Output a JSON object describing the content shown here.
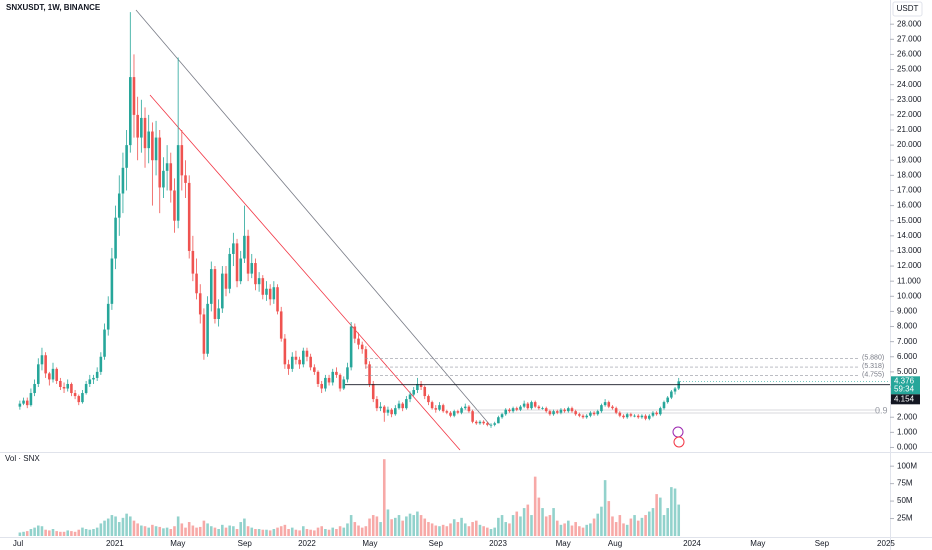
{
  "chart_data": {
    "type": "candlestick",
    "title": "SNXUSDT, 1W, BINANCE",
    "currency": "USDT",
    "up_color": "#26a69a",
    "down_color": "#ef5350",
    "xlim": [
      -5.4,
      236.4
    ],
    "xticks": [
      {
        "value": -0.5,
        "label": "Jul"
      },
      {
        "value": 25.8,
        "label": "2021"
      },
      {
        "value": 42.9,
        "label": "May"
      },
      {
        "value": 61.1,
        "label": "Sep"
      },
      {
        "value": 78,
        "label": "2022"
      },
      {
        "value": 95.1,
        "label": "May"
      },
      {
        "value": 113,
        "label": "Sep"
      },
      {
        "value": 129.9,
        "label": "2023"
      },
      {
        "value": 147.6,
        "label": "May"
      },
      {
        "value": 161.7,
        "label": "Aug"
      },
      {
        "value": 182.6,
        "label": "2024"
      },
      {
        "value": 200.5,
        "label": "May"
      },
      {
        "value": 217.9,
        "label": "Sep"
      },
      {
        "value": 235.3,
        "label": "2025"
      }
    ],
    "ylim": [
      -0.3,
      29.6
    ],
    "yticks": [
      {
        "value": 0,
        "label": "0.000"
      },
      {
        "value": 1,
        "label": "1.000"
      },
      {
        "value": 2,
        "label": "2.000"
      },
      {
        "value": 3,
        "label": "3.000"
      },
      {
        "value": 4,
        "label": "4.000"
      },
      {
        "value": 5,
        "label": "5.000"
      },
      {
        "value": 6,
        "label": "6.000"
      },
      {
        "value": 7,
        "label": "7.000"
      },
      {
        "value": 8,
        "label": "8.000"
      },
      {
        "value": 9,
        "label": "9.000"
      },
      {
        "value": 10,
        "label": "10.000"
      },
      {
        "value": 11,
        "label": "11.000"
      },
      {
        "value": 12,
        "label": "12.000"
      },
      {
        "value": 13,
        "label": "13.000"
      },
      {
        "value": 14,
        "label": "14.000"
      },
      {
        "value": 15,
        "label": "15.000"
      },
      {
        "value": 16,
        "label": "16.000"
      },
      {
        "value": 17,
        "label": "17.000"
      },
      {
        "value": 18,
        "label": "18.000"
      },
      {
        "value": 19,
        "label": "19.000"
      },
      {
        "value": 20,
        "label": "20.000"
      },
      {
        "value": 21,
        "label": "21.000"
      },
      {
        "value": 22,
        "label": "22.000"
      },
      {
        "value": 23,
        "label": "23.000"
      },
      {
        "value": 24,
        "label": "24.000"
      },
      {
        "value": 25,
        "label": "25.000"
      },
      {
        "value": 26,
        "label": "26.000"
      },
      {
        "value": 27,
        "label": "27.000"
      },
      {
        "value": 28,
        "label": "28.000"
      }
    ],
    "levels": [
      {
        "value": 5.88,
        "label": "(5.880)"
      },
      {
        "value": 5.318,
        "label": "(5.318)"
      },
      {
        "value": 4.755,
        "label": "(4.755)"
      }
    ],
    "last_price": 4.376,
    "countdown": "59:34",
    "prev_level": {
      "value": 4.154,
      "label": "4.154"
    },
    "annotation": "0.9",
    "ohlc": [
      [
        2.7,
        3.1,
        2.5,
        2.9
      ],
      [
        2.9,
        3.3,
        2.8,
        3.1
      ],
      [
        3.1,
        3.3,
        2.6,
        2.8
      ],
      [
        2.8,
        3.9,
        2.7,
        3.6
      ],
      [
        3.6,
        4.5,
        3.4,
        4.2
      ],
      [
        4.2,
        5.9,
        4.0,
        5.5
      ],
      [
        5.5,
        6.6,
        5.1,
        6.1
      ],
      [
        6.1,
        6.3,
        4.6,
        4.9
      ],
      [
        4.9,
        5.0,
        4.1,
        4.5
      ],
      [
        4.5,
        5.6,
        4.3,
        5.2
      ],
      [
        5.2,
        5.3,
        4.2,
        4.4
      ],
      [
        4.4,
        4.6,
        3.8,
        4.0
      ],
      [
        4.0,
        4.3,
        3.6,
        3.9
      ],
      [
        3.9,
        4.5,
        3.7,
        4.2
      ],
      [
        4.2,
        4.3,
        3.4,
        3.6
      ],
      [
        3.6,
        3.8,
        3.2,
        3.4
      ],
      [
        3.4,
        3.5,
        2.8,
        3.0
      ],
      [
        3.0,
        3.8,
        2.9,
        3.6
      ],
      [
        3.6,
        4.4,
        3.5,
        4.2
      ],
      [
        4.2,
        4.8,
        4.0,
        4.5
      ],
      [
        4.5,
        4.8,
        4.2,
        4.6
      ],
      [
        4.6,
        5.3,
        4.4,
        5.0
      ],
      [
        5.0,
        6.3,
        4.8,
        6.0
      ],
      [
        6.0,
        8.2,
        5.8,
        7.8
      ],
      [
        7.8,
        10.0,
        7.4,
        9.5
      ],
      [
        9.5,
        13.2,
        9.1,
        12.5
      ],
      [
        12.5,
        16.0,
        11.8,
        15.2
      ],
      [
        15.2,
        18.0,
        14.0,
        16.8
      ],
      [
        16.8,
        19.5,
        15.5,
        18.5
      ],
      [
        18.5,
        21.0,
        17.0,
        20.0
      ],
      [
        20.0,
        28.8,
        19.5,
        24.5
      ],
      [
        24.5,
        26.0,
        20.5,
        22.0
      ],
      [
        22.0,
        23.2,
        19.0,
        20.5
      ],
      [
        20.5,
        23.0,
        19.5,
        21.8
      ],
      [
        21.8,
        22.5,
        18.5,
        19.8
      ],
      [
        19.8,
        22.0,
        18.8,
        20.9
      ],
      [
        20.9,
        21.5,
        16.0,
        19.0
      ],
      [
        19.0,
        21.6,
        18.0,
        20.5
      ],
      [
        20.5,
        21.0,
        15.5,
        17.2
      ],
      [
        17.2,
        19.2,
        16.5,
        18.3
      ],
      [
        18.3,
        20.0,
        17.0,
        18.8
      ],
      [
        18.8,
        19.5,
        16.2,
        17.0
      ],
      [
        17.0,
        17.8,
        14.2,
        15.0
      ],
      [
        15.0,
        25.8,
        14.5,
        20.0
      ],
      [
        20.0,
        21.0,
        17.0,
        18.0
      ],
      [
        18.0,
        19.0,
        16.5,
        17.5
      ],
      [
        17.5,
        18.0,
        12.5,
        13.0
      ],
      [
        13.0,
        14.0,
        11.0,
        11.5
      ],
      [
        11.5,
        12.5,
        9.8,
        10.2
      ],
      [
        10.2,
        10.8,
        8.2,
        8.8
      ],
      [
        8.8,
        9.2,
        5.8,
        6.2
      ],
      [
        6.2,
        10.0,
        6.0,
        9.5
      ],
      [
        9.5,
        12.3,
        9.0,
        11.8
      ],
      [
        11.8,
        12.0,
        8.2,
        8.5
      ],
      [
        8.5,
        9.8,
        8.0,
        9.2
      ],
      [
        9.2,
        12.0,
        8.9,
        11.5
      ],
      [
        11.5,
        12.0,
        10.0,
        10.5
      ],
      [
        10.5,
        13.2,
        10.2,
        12.8
      ],
      [
        12.8,
        14.2,
        12.0,
        13.5
      ],
      [
        13.5,
        13.8,
        10.6,
        11.0
      ],
      [
        11.0,
        13.0,
        10.8,
        12.5
      ],
      [
        12.5,
        16.0,
        12.2,
        14.0
      ],
      [
        14.0,
        14.4,
        11.0,
        11.5
      ],
      [
        11.5,
        12.8,
        11.2,
        12.2
      ],
      [
        12.2,
        12.5,
        10.4,
        10.8
      ],
      [
        10.8,
        11.6,
        10.3,
        11.2
      ],
      [
        11.2,
        11.4,
        9.8,
        10.1
      ],
      [
        10.1,
        11.0,
        9.7,
        10.5
      ],
      [
        10.5,
        10.8,
        9.4,
        9.8
      ],
      [
        9.8,
        11.0,
        9.5,
        10.6
      ],
      [
        10.6,
        10.8,
        8.8,
        9.0
      ],
      [
        9.0,
        9.3,
        7.0,
        7.2
      ],
      [
        7.2,
        7.5,
        5.2,
        5.5
      ],
      [
        5.5,
        5.8,
        4.8,
        5.2
      ],
      [
        5.2,
        6.3,
        5.0,
        6.0
      ],
      [
        6.0,
        6.4,
        5.5,
        5.8
      ],
      [
        5.8,
        6.0,
        5.2,
        5.5
      ],
      [
        5.5,
        6.6,
        5.3,
        6.4
      ],
      [
        6.4,
        6.6,
        5.7,
        6.0
      ],
      [
        6.0,
        6.2,
        5.1,
        5.3
      ],
      [
        5.3,
        5.5,
        4.8,
        5.0
      ],
      [
        5.0,
        5.1,
        4.0,
        4.2
      ],
      [
        4.2,
        4.4,
        3.6,
        3.9
      ],
      [
        3.9,
        4.8,
        3.7,
        4.6
      ],
      [
        4.6,
        4.8,
        4.1,
        4.3
      ],
      [
        4.3,
        5.2,
        4.1,
        5.0
      ],
      [
        5.0,
        5.3,
        4.6,
        4.8
      ],
      [
        4.8,
        4.9,
        3.7,
        3.9
      ],
      [
        3.9,
        4.7,
        3.8,
        4.5
      ],
      [
        4.5,
        5.6,
        4.3,
        5.3
      ],
      [
        5.3,
        8.3,
        5.1,
        8.0
      ],
      [
        8.0,
        8.2,
        6.9,
        7.2
      ],
      [
        7.2,
        7.6,
        6.5,
        6.8
      ],
      [
        6.8,
        7.0,
        6.2,
        6.5
      ],
      [
        6.5,
        6.7,
        5.2,
        5.5
      ],
      [
        5.5,
        5.7,
        4.0,
        4.2
      ],
      [
        4.2,
        4.4,
        3.0,
        3.2
      ],
      [
        3.2,
        3.4,
        2.4,
        2.6
      ],
      [
        2.6,
        3.0,
        2.4,
        2.7
      ],
      [
        2.7,
        2.8,
        1.7,
        2.3
      ],
      [
        2.3,
        2.7,
        2.1,
        2.5
      ],
      [
        2.5,
        2.6,
        2.0,
        2.2
      ],
      [
        2.2,
        2.8,
        2.1,
        2.6
      ],
      [
        2.6,
        3.1,
        2.5,
        2.9
      ],
      [
        2.9,
        3.0,
        2.4,
        2.6
      ],
      [
        2.6,
        3.4,
        2.5,
        3.2
      ],
      [
        3.2,
        3.7,
        3.0,
        3.5
      ],
      [
        3.5,
        4.0,
        3.4,
        3.8
      ],
      [
        3.8,
        4.6,
        3.6,
        4.2
      ],
      [
        4.2,
        4.4,
        3.8,
        4.0
      ],
      [
        4.0,
        4.1,
        3.2,
        3.4
      ],
      [
        3.4,
        3.5,
        2.8,
        3.0
      ],
      [
        3.0,
        3.1,
        2.5,
        2.6
      ],
      [
        2.6,
        2.8,
        2.3,
        2.5
      ],
      [
        2.5,
        3.0,
        2.4,
        2.8
      ],
      [
        2.8,
        2.9,
        2.3,
        2.4
      ],
      [
        2.4,
        2.5,
        2.2,
        2.3
      ],
      [
        2.3,
        2.4,
        2.0,
        2.1
      ],
      [
        2.1,
        2.5,
        2.0,
        2.4
      ],
      [
        2.4,
        2.5,
        2.2,
        2.3
      ],
      [
        2.3,
        2.7,
        2.2,
        2.6
      ],
      [
        2.6,
        2.9,
        2.5,
        2.7
      ],
      [
        2.7,
        2.8,
        2.3,
        2.4
      ],
      [
        2.4,
        2.5,
        1.6,
        1.7
      ],
      [
        1.7,
        1.8,
        1.5,
        1.6
      ],
      [
        1.6,
        1.8,
        1.5,
        1.7
      ],
      [
        1.7,
        1.8,
        1.5,
        1.6
      ],
      [
        1.6,
        1.7,
        1.4,
        1.5
      ],
      [
        1.5,
        1.6,
        1.3,
        1.5
      ],
      [
        1.5,
        1.7,
        1.4,
        1.6
      ],
      [
        1.6,
        2.1,
        1.6,
        2.0
      ],
      [
        2.0,
        2.3,
        1.9,
        2.2
      ],
      [
        2.2,
        2.6,
        2.1,
        2.5
      ],
      [
        2.5,
        2.6,
        2.3,
        2.4
      ],
      [
        2.4,
        2.7,
        2.3,
        2.6
      ],
      [
        2.6,
        2.7,
        2.4,
        2.5
      ],
      [
        2.5,
        2.8,
        2.4,
        2.7
      ],
      [
        2.7,
        3.1,
        2.6,
        2.9
      ],
      [
        2.9,
        3.0,
        2.5,
        2.6
      ],
      [
        2.6,
        3.1,
        2.5,
        3.0
      ],
      [
        3.0,
        3.1,
        2.6,
        2.7
      ],
      [
        2.7,
        2.8,
        2.5,
        2.6
      ],
      [
        2.6,
        2.7,
        2.5,
        2.6
      ],
      [
        2.6,
        2.7,
        2.3,
        2.4
      ],
      [
        2.4,
        2.5,
        2.1,
        2.2
      ],
      [
        2.2,
        2.5,
        2.1,
        2.4
      ],
      [
        2.4,
        2.5,
        2.2,
        2.3
      ],
      [
        2.3,
        2.6,
        2.2,
        2.5
      ],
      [
        2.5,
        2.6,
        2.3,
        2.4
      ],
      [
        2.4,
        2.7,
        2.3,
        2.6
      ],
      [
        2.6,
        2.7,
        2.3,
        2.4
      ],
      [
        2.4,
        2.5,
        2.1,
        2.2
      ],
      [
        2.2,
        2.3,
        2.0,
        2.1
      ],
      [
        2.1,
        2.2,
        1.9,
        2.0
      ],
      [
        2.0,
        2.2,
        1.9,
        2.1
      ],
      [
        2.1,
        2.4,
        2.0,
        2.3
      ],
      [
        2.3,
        2.4,
        2.1,
        2.2
      ],
      [
        2.2,
        2.5,
        2.1,
        2.4
      ],
      [
        2.4,
        2.9,
        2.3,
        2.8
      ],
      [
        2.8,
        3.2,
        2.7,
        3.0
      ],
      [
        3.0,
        3.1,
        2.6,
        2.7
      ],
      [
        2.7,
        2.8,
        2.5,
        2.6
      ],
      [
        2.6,
        2.7,
        2.2,
        2.3
      ],
      [
        2.3,
        2.4,
        2.0,
        2.1
      ],
      [
        2.1,
        2.2,
        1.9,
        2.0
      ],
      [
        2.0,
        2.3,
        1.9,
        2.2
      ],
      [
        2.2,
        2.3,
        2.0,
        2.1
      ],
      [
        2.1,
        2.2,
        2.0,
        2.1
      ],
      [
        2.1,
        2.2,
        1.9,
        2.0
      ],
      [
        2.0,
        2.2,
        1.9,
        2.1
      ],
      [
        2.1,
        2.2,
        1.8,
        1.9
      ],
      [
        1.9,
        2.2,
        1.8,
        2.1
      ],
      [
        2.1,
        2.4,
        2.0,
        2.3
      ],
      [
        2.3,
        2.4,
        2.1,
        2.2
      ],
      [
        2.2,
        2.7,
        2.1,
        2.6
      ],
      [
        2.6,
        3.1,
        2.5,
        3.0
      ],
      [
        3.0,
        3.4,
        2.9,
        3.3
      ],
      [
        3.3,
        3.8,
        3.2,
        3.7
      ],
      [
        3.7,
        4.0,
        3.5,
        3.9
      ],
      [
        3.9,
        4.6,
        3.8,
        4.376
      ]
    ],
    "volume": {
      "title": "Vol · SNX",
      "ylim": [
        0,
        116
      ],
      "yticks": [
        {
          "value": 25,
          "label": "25M"
        },
        {
          "value": 50,
          "label": "50M"
        },
        {
          "value": 75,
          "label": "75M"
        },
        {
          "value": 100,
          "label": "100M"
        }
      ],
      "values": [
        5,
        6,
        7,
        10,
        12,
        15,
        14,
        9,
        8,
        10,
        7,
        6,
        6,
        8,
        7,
        6,
        9,
        12,
        10,
        9,
        10,
        12,
        18,
        22,
        25,
        30,
        28,
        20,
        26,
        32,
        28,
        22,
        18,
        15,
        14,
        12,
        16,
        14,
        13,
        11,
        12,
        10,
        14,
        28,
        18,
        12,
        20,
        15,
        12,
        13,
        22,
        18,
        14,
        12,
        10,
        16,
        12,
        15,
        14,
        10,
        20,
        25,
        14,
        12,
        10,
        10,
        9,
        9,
        8,
        10,
        12,
        14,
        16,
        10,
        12,
        9,
        8,
        14,
        10,
        9,
        8,
        12,
        14,
        10,
        9,
        12,
        10,
        14,
        12,
        18,
        30,
        20,
        15,
        12,
        14,
        25,
        30,
        28,
        20,
        110,
        38,
        24,
        26,
        30,
        22,
        28,
        32,
        30,
        35,
        30,
        25,
        20,
        18,
        15,
        14,
        16,
        14,
        18,
        24,
        20,
        26,
        18,
        14,
        20,
        22,
        16,
        14,
        12,
        10,
        12,
        26,
        30,
        20,
        18,
        30,
        35,
        28,
        40,
        45,
        30,
        85,
        55,
        40,
        28,
        30,
        40,
        22,
        16,
        18,
        22,
        15,
        20,
        14,
        12,
        16,
        18,
        25,
        32,
        42,
        80,
        50,
        28,
        20,
        30,
        18,
        16,
        25,
        30,
        22,
        26,
        30,
        35,
        40,
        60,
        55,
        30,
        40,
        70,
        68,
        45
      ]
    }
  }
}
